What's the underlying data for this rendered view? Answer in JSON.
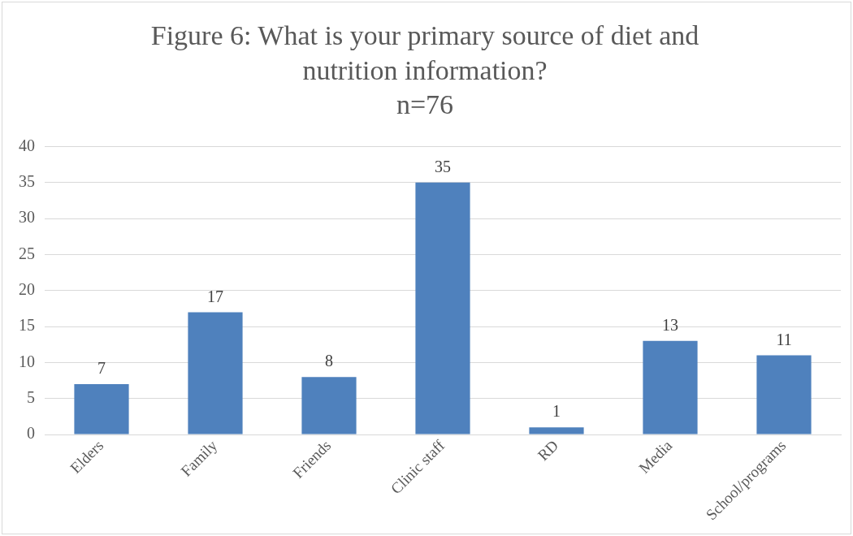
{
  "chart_data": {
    "type": "bar",
    "title": "Figure 6: What is your primary source of diet and nutrition information?",
    "subtitle": "n=76",
    "categories": [
      "Elders",
      "Family",
      "Friends",
      "Clinic staff",
      "RD",
      "Media",
      "School/programs"
    ],
    "values": [
      7,
      17,
      8,
      35,
      1,
      13,
      11
    ],
    "color": "#4f81bd",
    "ylim": [
      0,
      40
    ],
    "yticks": [
      0,
      5,
      10,
      15,
      20,
      25,
      30,
      35,
      40
    ],
    "grid": "y",
    "data_labels": true,
    "legend": false
  }
}
